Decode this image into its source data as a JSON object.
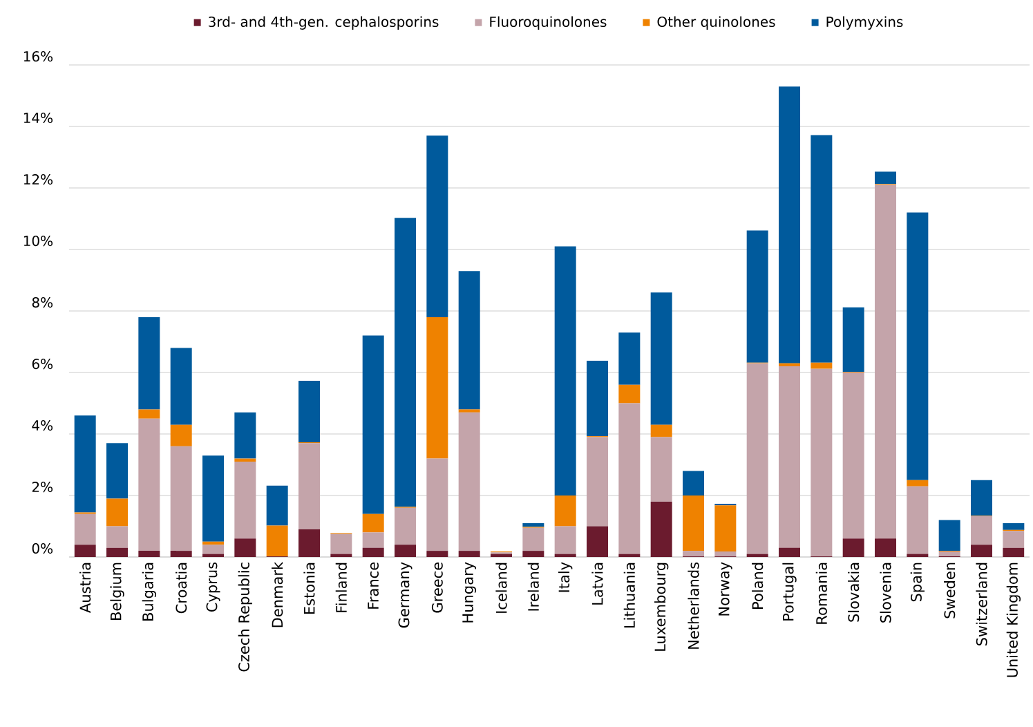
{
  "chart_data": {
    "type": "bar",
    "stacked": true,
    "grid": "y",
    "legend": "top",
    "categories": [
      "Austria",
      "Belgium",
      "Bulgaria",
      "Croatia",
      "Cyprus",
      "Czech Republic",
      "Denmark",
      "Estonia",
      "Finland",
      "France",
      "Germany",
      "Greece",
      "Hungary",
      "Iceland",
      "Ireland",
      "Italy",
      "Latvia",
      "Lithuania",
      "Luxembourg",
      "Netherlands",
      "Norway",
      "Poland",
      "Portugal",
      "Romania",
      "Slovakia",
      "Slovenia",
      "Spain",
      "Sweden",
      "Switzerland",
      "United Kingdom"
    ],
    "ylim": [
      0,
      16
    ],
    "yticks": [
      {
        "value": 0,
        "label": "0%"
      },
      {
        "value": 2,
        "label": "2%"
      },
      {
        "value": 4,
        "label": "4%"
      },
      {
        "value": 6,
        "label": "6%"
      },
      {
        "value": 8,
        "label": "8%"
      },
      {
        "value": 10,
        "label": "10%"
      },
      {
        "value": 12,
        "label": "12%"
      },
      {
        "value": 14,
        "label": "14%"
      },
      {
        "value": 16,
        "label": "16%"
      }
    ],
    "series": [
      {
        "name": "3rd- and 4th-gen. cephalosporins",
        "color": "#6b1b2e",
        "values": [
          0.4,
          0.3,
          0.2,
          0.2,
          0.1,
          0.6,
          0.02,
          0.9,
          0.1,
          0.3,
          0.4,
          0.2,
          0.2,
          0.1,
          0.2,
          0.1,
          1.0,
          0.1,
          1.8,
          0.02,
          0.02,
          0.1,
          0.3,
          0.02,
          0.6,
          0.6,
          0.1,
          0.02,
          0.4,
          0.3
        ]
      },
      {
        "name": "Fluoroquinolones",
        "color": "#c4a4aa",
        "values": [
          1.0,
          0.7,
          4.3,
          3.4,
          0.3,
          2.5,
          0,
          2.8,
          0.65,
          0.5,
          1.2,
          3.0,
          4.5,
          0.05,
          0.75,
          0.9,
          2.9,
          4.9,
          2.1,
          0.18,
          0.16,
          6.2,
          5.9,
          6.1,
          5.4,
          11.5,
          2.2,
          0.16,
          0.93,
          0.55
        ]
      },
      {
        "name": "Other quinolones",
        "color": "#ef8200",
        "values": [
          0.05,
          0.9,
          0.3,
          0.7,
          0.1,
          0.1,
          1.0,
          0.03,
          0.03,
          0.6,
          0.03,
          4.6,
          0.1,
          0.03,
          0.03,
          1.0,
          0.03,
          0.6,
          0.4,
          1.8,
          1.5,
          0.02,
          0.1,
          0.2,
          0.02,
          0.03,
          0.2,
          0.02,
          0.02,
          0.03
        ]
      },
      {
        "name": "Polymyxins",
        "color": "#005a9c",
        "values": [
          3.15,
          1.8,
          3.0,
          2.5,
          2.8,
          1.5,
          1.3,
          2.0,
          0,
          5.8,
          9.4,
          5.9,
          4.5,
          0,
          0.12,
          8.1,
          2.45,
          1.7,
          4.3,
          0.8,
          0.05,
          4.3,
          9.0,
          7.4,
          2.1,
          0.4,
          8.7,
          1.0,
          1.15,
          0.22
        ]
      }
    ]
  }
}
